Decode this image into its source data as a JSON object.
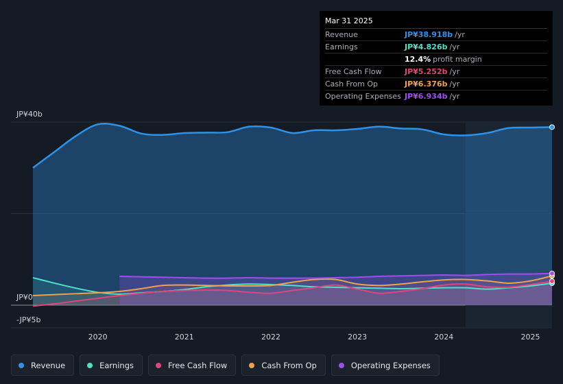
{
  "tooltip": {
    "date": "Mar 31 2025",
    "rows": [
      {
        "label": "Revenue",
        "value": "JP¥38.918b",
        "unit": "/yr",
        "color": "#2e93e8"
      },
      {
        "label": "Earnings",
        "value": "JP¥4.826b",
        "unit": "/yr",
        "color": "#4fe0c8"
      },
      {
        "label": "",
        "value": "12.4%",
        "unit": "profit margin",
        "color": "#ffffff"
      },
      {
        "label": "Free Cash Flow",
        "value": "JP¥5.252b",
        "unit": "/yr",
        "color": "#e0457b"
      },
      {
        "label": "Cash From Op",
        "value": "JP¥6.376b",
        "unit": "/yr",
        "color": "#f0a24b"
      },
      {
        "label": "Operating Expenses",
        "value": "JP¥6.934b",
        "unit": "/yr",
        "color": "#a24cf0"
      }
    ]
  },
  "legend": [
    {
      "label": "Revenue",
      "color": "#2e93e8"
    },
    {
      "label": "Earnings",
      "color": "#4fe0c8"
    },
    {
      "label": "Free Cash Flow",
      "color": "#e0457b"
    },
    {
      "label": "Cash From Op",
      "color": "#f0a24b"
    },
    {
      "label": "Operating Expenses",
      "color": "#a24cf0"
    }
  ],
  "chart_data": {
    "type": "line",
    "ylim": [
      -5,
      40
    ],
    "y_tick_labels": [
      {
        "value": 40,
        "label": "JP¥40b"
      },
      {
        "value": 0,
        "label": "JP¥0"
      },
      {
        "value": -5,
        "label": "-JP¥5b"
      }
    ],
    "x_tick_labels": [
      {
        "value": 2020,
        "label": "2020"
      },
      {
        "value": 2021,
        "label": "2021"
      },
      {
        "value": 2022,
        "label": "2022"
      },
      {
        "value": 2023,
        "label": "2023"
      },
      {
        "value": 2024,
        "label": "2024"
      },
      {
        "value": 2025,
        "label": "2025"
      }
    ],
    "xlim": [
      2019.0,
      2025.25
    ],
    "highlight_start": 2024.25,
    "series": [
      {
        "name": "Revenue",
        "color": "#2e93e8",
        "points": [
          [
            2019.25,
            30
          ],
          [
            2019.5,
            33.5
          ],
          [
            2019.75,
            37
          ],
          [
            2020.0,
            39.5
          ],
          [
            2020.25,
            39.2
          ],
          [
            2020.5,
            37.5
          ],
          [
            2020.75,
            37.2
          ],
          [
            2021.0,
            37.6
          ],
          [
            2021.25,
            37.7
          ],
          [
            2021.5,
            37.8
          ],
          [
            2021.75,
            39.0
          ],
          [
            2022.0,
            38.8
          ],
          [
            2022.25,
            37.6
          ],
          [
            2022.5,
            38.2
          ],
          [
            2022.75,
            38.2
          ],
          [
            2023.0,
            38.5
          ],
          [
            2023.25,
            39.0
          ],
          [
            2023.5,
            38.6
          ],
          [
            2023.75,
            38.4
          ],
          [
            2024.0,
            37.3
          ],
          [
            2024.25,
            37.1
          ],
          [
            2024.5,
            37.6
          ],
          [
            2024.75,
            38.7
          ],
          [
            2025.0,
            38.8
          ],
          [
            2025.25,
            38.9
          ]
        ]
      },
      {
        "name": "Earnings",
        "color": "#4fe0c8",
        "points": [
          [
            2019.25,
            6.0
          ],
          [
            2019.5,
            4.8
          ],
          [
            2019.75,
            3.7
          ],
          [
            2020.0,
            2.8
          ],
          [
            2020.25,
            2.4
          ],
          [
            2020.5,
            2.7
          ],
          [
            2020.75,
            3.0
          ],
          [
            2021.0,
            3.4
          ],
          [
            2021.25,
            4.0
          ],
          [
            2021.5,
            4.4
          ],
          [
            2021.75,
            4.6
          ],
          [
            2022.0,
            4.5
          ],
          [
            2022.25,
            4.3
          ],
          [
            2022.5,
            4.0
          ],
          [
            2022.75,
            3.9
          ],
          [
            2023.0,
            3.8
          ],
          [
            2023.25,
            3.7
          ],
          [
            2023.5,
            3.6
          ],
          [
            2023.75,
            3.7
          ],
          [
            2024.0,
            3.8
          ],
          [
            2024.25,
            3.8
          ],
          [
            2024.5,
            3.5
          ],
          [
            2024.75,
            3.8
          ],
          [
            2025.0,
            4.2
          ],
          [
            2025.25,
            4.8
          ]
        ]
      },
      {
        "name": "Free Cash Flow",
        "color": "#e0457b",
        "points": [
          [
            2019.25,
            -0.2
          ],
          [
            2019.5,
            0.3
          ],
          [
            2019.75,
            0.9
          ],
          [
            2020.0,
            1.5
          ],
          [
            2020.25,
            2.1
          ],
          [
            2020.5,
            2.6
          ],
          [
            2020.75,
            3.0
          ],
          [
            2021.0,
            3.2
          ],
          [
            2021.25,
            3.3
          ],
          [
            2021.5,
            3.2
          ],
          [
            2021.75,
            2.8
          ],
          [
            2022.0,
            2.6
          ],
          [
            2022.25,
            3.2
          ],
          [
            2022.5,
            3.8
          ],
          [
            2022.75,
            4.4
          ],
          [
            2023.0,
            3.5
          ],
          [
            2023.25,
            2.6
          ],
          [
            2023.5,
            3.0
          ],
          [
            2023.75,
            3.6
          ],
          [
            2024.0,
            4.4
          ],
          [
            2024.25,
            4.6
          ],
          [
            2024.5,
            4.0
          ],
          [
            2024.75,
            3.9
          ],
          [
            2025.0,
            4.5
          ],
          [
            2025.25,
            5.25
          ]
        ]
      },
      {
        "name": "Cash From Op",
        "color": "#f0a24b",
        "points": [
          [
            2019.25,
            2.1
          ],
          [
            2019.5,
            2.3
          ],
          [
            2019.75,
            2.5
          ],
          [
            2020.0,
            2.7
          ],
          [
            2020.25,
            3.0
          ],
          [
            2020.5,
            3.6
          ],
          [
            2020.75,
            4.3
          ],
          [
            2021.0,
            4.4
          ],
          [
            2021.25,
            4.3
          ],
          [
            2021.5,
            4.2
          ],
          [
            2021.75,
            4.2
          ],
          [
            2022.0,
            4.3
          ],
          [
            2022.25,
            5.0
          ],
          [
            2022.5,
            5.6
          ],
          [
            2022.75,
            5.6
          ],
          [
            2023.0,
            4.6
          ],
          [
            2023.25,
            4.3
          ],
          [
            2023.5,
            4.6
          ],
          [
            2023.75,
            5.1
          ],
          [
            2024.0,
            5.5
          ],
          [
            2024.25,
            5.6
          ],
          [
            2024.5,
            5.3
          ],
          [
            2024.75,
            4.8
          ],
          [
            2025.0,
            5.3
          ],
          [
            2025.25,
            6.4
          ]
        ]
      },
      {
        "name": "Operating Expenses",
        "color": "#a24cf0",
        "points": [
          [
            2020.25,
            6.3
          ],
          [
            2020.5,
            6.2
          ],
          [
            2020.75,
            6.1
          ],
          [
            2021.0,
            6.0
          ],
          [
            2021.25,
            5.9
          ],
          [
            2021.5,
            5.9
          ],
          [
            2021.75,
            6.0
          ],
          [
            2022.0,
            5.9
          ],
          [
            2022.25,
            5.9
          ],
          [
            2022.5,
            5.9
          ],
          [
            2022.75,
            6.0
          ],
          [
            2023.0,
            6.1
          ],
          [
            2023.25,
            6.3
          ],
          [
            2023.5,
            6.4
          ],
          [
            2023.75,
            6.5
          ],
          [
            2024.0,
            6.6
          ],
          [
            2024.25,
            6.5
          ],
          [
            2024.5,
            6.7
          ],
          [
            2024.75,
            6.8
          ],
          [
            2025.0,
            6.8
          ],
          [
            2025.25,
            6.93
          ]
        ]
      }
    ]
  }
}
